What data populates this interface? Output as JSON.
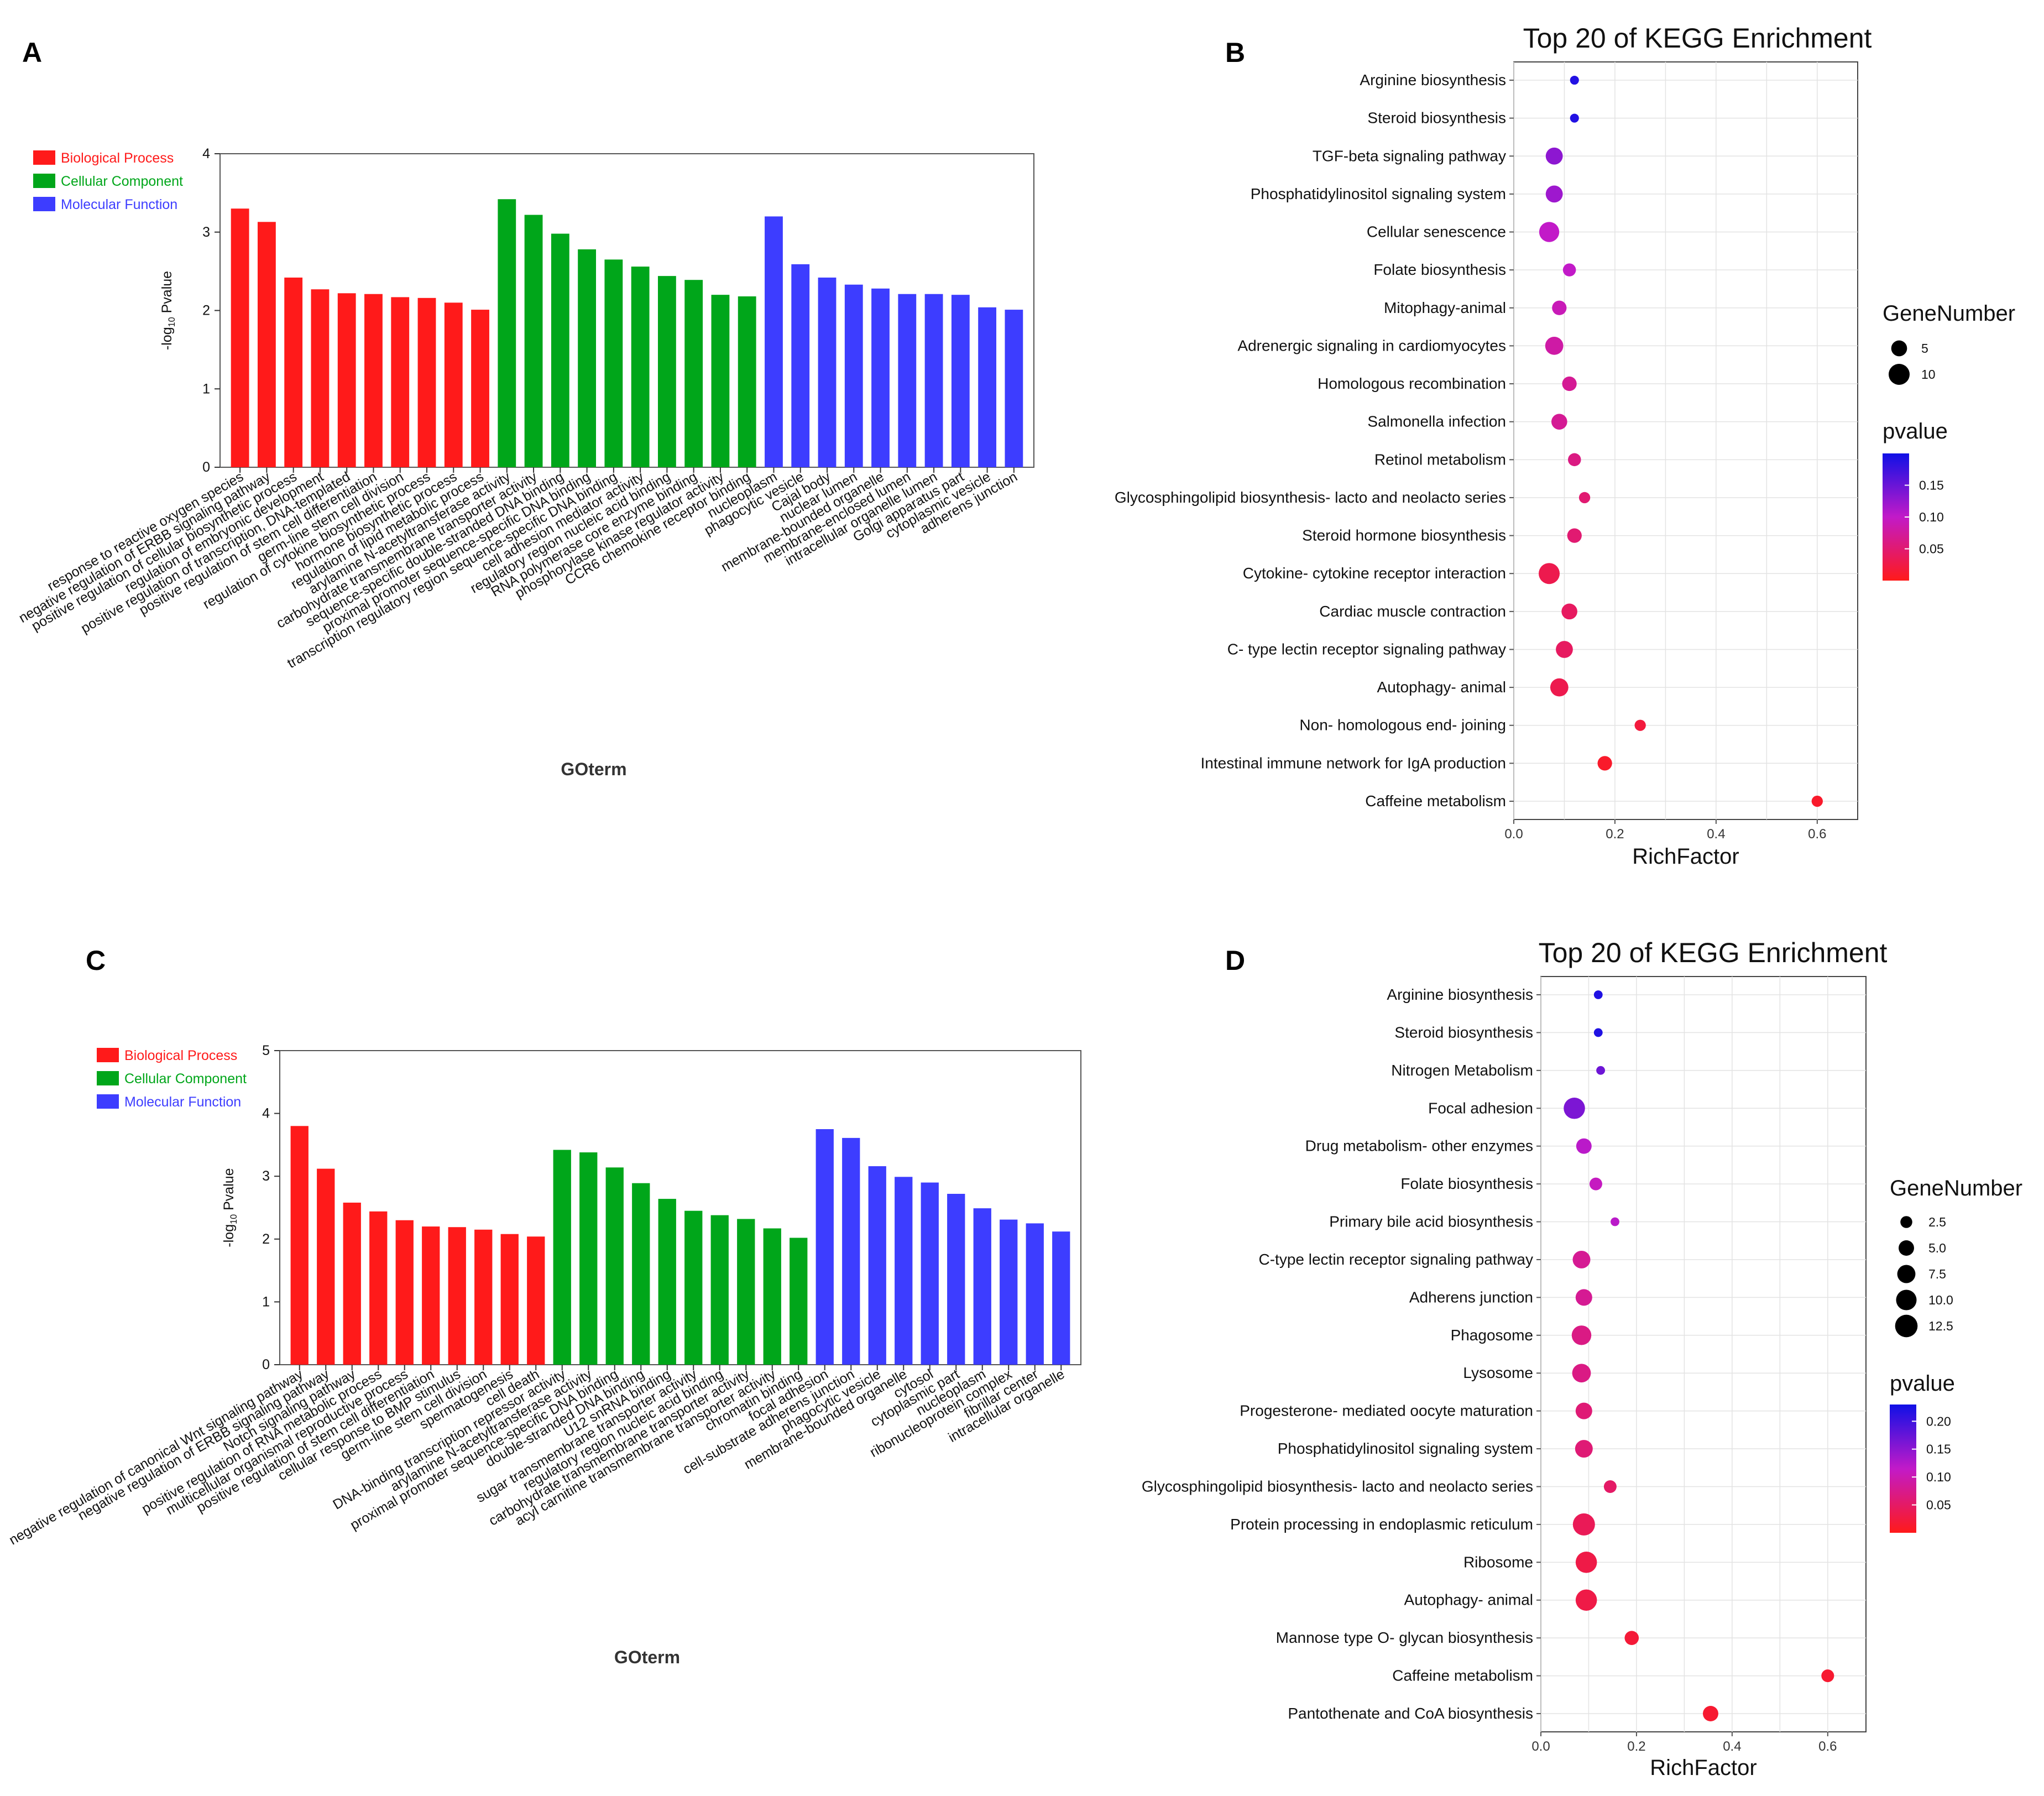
{
  "colors": {
    "biological_process": "#ff1a1a",
    "cellular_component": "#00a61a",
    "molecular_function": "#3d3dff",
    "pvalue_high": "#1010e6",
    "pvalue_mid": "#c21ac8",
    "pvalue_low": "#ff1a1a"
  },
  "panels": {
    "A": {
      "letter": "A"
    },
    "B": {
      "letter": "B"
    },
    "C": {
      "letter": "C"
    },
    "D": {
      "letter": "D"
    }
  },
  "chart_data": [
    {
      "id": "A",
      "type": "bar",
      "title": "",
      "xlabel": "GOterm",
      "ylabel_prefix": "-log",
      "ylabel_sub": "10",
      "ylabel_suffix": " Pvalue",
      "ylim": [
        0,
        4
      ],
      "yticks": [
        0,
        1,
        2,
        3,
        4
      ],
      "legend": [
        {
          "label": "Biological Process",
          "color_key": "biological_process"
        },
        {
          "label": "Cellular Component",
          "color_key": "cellular_component"
        },
        {
          "label": "Molecular Function",
          "color_key": "molecular_function"
        }
      ],
      "legend_position": "top-left",
      "series": [
        {
          "name": "Biological Process",
          "color_key": "biological_process",
          "categories": [
            "response to reactive oxygen species",
            "negative regulation of ERBB signaling pathway",
            "positive regulation of cellular biosynthetic process",
            "regulation of embryonic development",
            "positive regulation of transcription, DNA-templated",
            "positive regulation of stem cell differentiation",
            "germ-line stem cell division",
            "regulation of cytokine biosynthetic process",
            "hormone biosynthetic process",
            "regulation of lipid metabolic process"
          ],
          "values": [
            3.3,
            3.13,
            2.42,
            2.27,
            2.22,
            2.21,
            2.17,
            2.16,
            2.1,
            2.01
          ]
        },
        {
          "name": "Cellular Component",
          "color_key": "cellular_component",
          "categories": [
            "arylamine N-acetyltransferase activity",
            "carbohydrate transmembrane transporter activity",
            "sequence-specific double-stranded DNA binding",
            "proximal promoter sequence-specific DNA binding",
            "transcription regulatory region sequence-specific DNA binding",
            "cell adhesion mediator activity",
            "regulatory region nucleic acid binding",
            "RNA polymerase core enzyme binding",
            "phosphorylase kinase regulator activity",
            "CCR6 chemokine receptor binding"
          ],
          "values": [
            3.42,
            3.22,
            2.98,
            2.78,
            2.65,
            2.56,
            2.44,
            2.39,
            2.2,
            2.18
          ]
        },
        {
          "name": "Molecular Function",
          "color_key": "molecular_function",
          "categories": [
            "nucleoplasm",
            "phagocytic vesicle",
            "Cajal body",
            "nuclear lumen",
            "membrane-bounded organelle",
            "membrane-enclosed lumen",
            "intracellular organelle lumen",
            "Golgi apparatus part",
            "cytoplasmic vesicle",
            "adherens junction"
          ],
          "values": [
            3.2,
            2.59,
            2.42,
            2.33,
            2.28,
            2.21,
            2.21,
            2.2,
            2.04,
            2.01
          ]
        }
      ]
    },
    {
      "id": "B",
      "type": "scatter",
      "title": "Top 20 of KEGG Enrichment",
      "xlabel": "RichFactor",
      "xlim": [
        0,
        0.68
      ],
      "xticks": [
        0.0,
        0.2,
        0.4,
        0.6
      ],
      "categories": [
        "Arginine biosynthesis",
        "Steroid biosynthesis",
        "TGF-beta signaling pathway",
        "Phosphatidylinositol signaling system",
        "Cellular senescence",
        "Folate biosynthesis",
        "Mitophagy-animal",
        "Adrenergic signaling in cardiomyocytes",
        "Homologous recombination",
        "Salmonella infection",
        "Retinol metabolism",
        "Glycosphingolipid biosynthesis- lacto and  neolacto series",
        "Steroid hormone biosynthesis",
        "Cytokine- cytokine receptor interaction",
        "Cardiac muscle contraction",
        "C- type lectin receptor signaling pathway",
        "Autophagy- animal",
        "Non- homologous end- joining",
        "Intestinal immune network for IgA production",
        "Caffeine metabolism"
      ],
      "rich_factor": [
        0.12,
        0.12,
        0.08,
        0.08,
        0.07,
        0.11,
        0.09,
        0.08,
        0.11,
        0.09,
        0.12,
        0.14,
        0.12,
        0.07,
        0.11,
        0.1,
        0.09,
        0.25,
        0.18,
        0.6
      ],
      "gene_number": [
        1,
        1,
        6,
        6,
        9,
        3,
        4,
        7,
        4,
        5,
        3,
        2,
        4,
        10,
        5,
        6,
        7,
        2,
        4,
        2
      ],
      "pvalue": [
        0.19,
        0.19,
        0.13,
        0.12,
        0.1,
        0.1,
        0.09,
        0.08,
        0.07,
        0.07,
        0.06,
        0.05,
        0.05,
        0.03,
        0.04,
        0.04,
        0.03,
        0.02,
        0.01,
        0.01
      ],
      "size_legend": {
        "title": "GeneNumber",
        "values": [
          5,
          10
        ]
      },
      "color_legend": {
        "title": "pvalue",
        "ticks": [
          0.15,
          0.1,
          0.05
        ],
        "tick_labels": [
          "0.15",
          "0.10",
          "0.05"
        ],
        "range": [
          0.0,
          0.2
        ]
      },
      "legend_position": "right"
    },
    {
      "id": "C",
      "type": "bar",
      "title": "",
      "xlabel": "GOterm",
      "ylabel_prefix": "-log",
      "ylabel_sub": "10",
      "ylabel_suffix": " Pvalue",
      "ylim": [
        0,
        5
      ],
      "yticks": [
        0,
        1,
        2,
        3,
        4,
        5
      ],
      "legend": [
        {
          "label": "Biological Process",
          "color_key": "biological_process"
        },
        {
          "label": "Cellular Component",
          "color_key": "cellular_component"
        },
        {
          "label": "Molecular Function",
          "color_key": "molecular_function"
        }
      ],
      "legend_position": "top-left",
      "series": [
        {
          "name": "Biological Process",
          "color_key": "biological_process",
          "categories": [
            "negative regulation of canonical Wnt signaling pathway",
            "negative regulation of ERBB signaling pathway",
            "Notch signaling pathway",
            "positive regulation of RNA metabolic process",
            "multicellular organismal reproductive process",
            "positive regulation of stem cell differentiation",
            "cellular response to BMP stimulus",
            "germ-line stem cell division",
            "spermatogenesis",
            "cell death"
          ],
          "values": [
            3.8,
            3.12,
            2.58,
            2.44,
            2.3,
            2.2,
            2.19,
            2.15,
            2.08,
            2.04
          ]
        },
        {
          "name": "Cellular Component",
          "color_key": "cellular_component",
          "categories": [
            "DNA-binding transcription repressor activity",
            "arylamine N-acetyltransferase activity",
            "proximal promoter sequence-specific DNA binding",
            "double-stranded DNA binding",
            "U12 snRNA binding",
            "sugar transmembrane transporter activity",
            "regulatory region nucleic acid binding",
            "carbohydrate transmembrane transporter activity",
            "acyl carnitine transmembrane transporter activity",
            "chromatin binding"
          ],
          "values": [
            3.42,
            3.38,
            3.14,
            2.89,
            2.64,
            2.45,
            2.38,
            2.32,
            2.17,
            2.02
          ]
        },
        {
          "name": "Molecular Function",
          "color_key": "molecular_function",
          "categories": [
            "focal adhesion",
            "cell-substrate adherens junction",
            "phagocytic vesicle",
            "membrane-bounded organelle",
            "cytosol",
            "cytoplasmic part",
            "nucleoplasm",
            "ribonucleoprotein complex",
            "fibrillar center",
            "intracellular organelle"
          ],
          "values": [
            3.75,
            3.61,
            3.16,
            2.99,
            2.9,
            2.72,
            2.49,
            2.31,
            2.25,
            2.12
          ]
        }
      ]
    },
    {
      "id": "D",
      "type": "scatter",
      "title": "Top 20 of KEGG Enrichment",
      "xlabel": "RichFactor",
      "xlim": [
        0,
        0.68
      ],
      "xticks": [
        0.0,
        0.2,
        0.4,
        0.6
      ],
      "categories": [
        "Arginine biosynthesis",
        "Steroid biosynthesis",
        "Nitrogen Metabolism",
        "Focal adhesion",
        "Drug metabolism- other enzymes",
        "Folate biosynthesis",
        "Primary bile acid biosynthesis",
        "C-type lectin receptor signaling pathway",
        "Adherens junction",
        "Phagosome",
        "Lysosome",
        "Progesterone- mediated oocyte maturation",
        "Phosphatidylinositol signaling system",
        "Glycosphingolipid biosynthesis- lacto and neolacto series",
        "Protein processing in endoplasmic reticulum",
        "Ribosome",
        "Autophagy- animal",
        "Mannose type O- glycan biosynthesis",
        "Caffeine metabolism",
        "Pantothenate and CoA biosynthesis"
      ],
      "rich_factor": [
        0.12,
        0.12,
        0.125,
        0.07,
        0.09,
        0.115,
        0.155,
        0.085,
        0.09,
        0.085,
        0.085,
        0.09,
        0.09,
        0.145,
        0.09,
        0.095,
        0.095,
        0.19,
        0.6,
        0.355
      ],
      "gene_number": [
        1,
        1,
        1,
        11,
        5,
        3,
        1,
        7,
        6,
        9,
        8,
        6,
        7,
        3,
        12,
        11,
        11,
        4,
        3,
        5
      ],
      "pvalue": [
        0.22,
        0.22,
        0.17,
        0.16,
        0.12,
        0.11,
        0.12,
        0.08,
        0.08,
        0.07,
        0.07,
        0.06,
        0.06,
        0.05,
        0.04,
        0.03,
        0.03,
        0.02,
        0.015,
        0.015
      ],
      "size_legend": {
        "title": "GeneNumber",
        "values": [
          2.5,
          5.0,
          7.5,
          10.0,
          12.5
        ],
        "labels": [
          "2.5",
          "5.0",
          "7.5",
          "10.0",
          "12.5"
        ]
      },
      "color_legend": {
        "title": "pvalue",
        "ticks": [
          0.2,
          0.15,
          0.1,
          0.05
        ],
        "tick_labels": [
          "0.20",
          "0.15",
          "0.10",
          "0.05"
        ],
        "range": [
          0.0,
          0.23
        ]
      },
      "legend_position": "right"
    }
  ]
}
